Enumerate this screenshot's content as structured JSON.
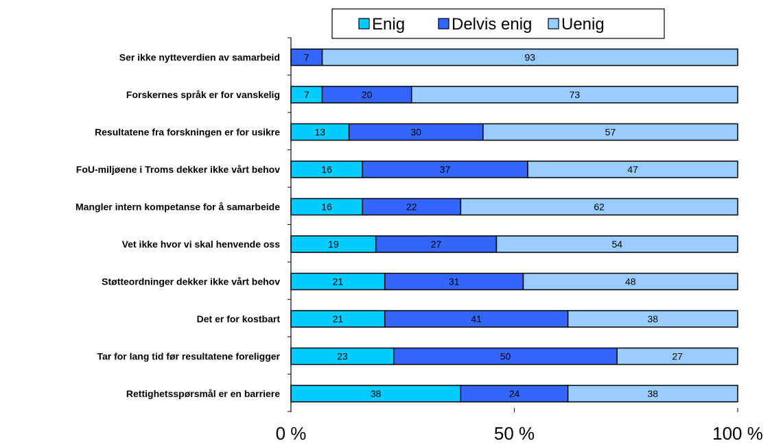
{
  "chart_data": {
    "type": "bar",
    "orientation": "horizontal",
    "stacked": "percent",
    "title": "",
    "xlabel": "",
    "ylabel": "",
    "xlim": [
      0,
      100
    ],
    "x_ticks": [
      "0 %",
      "50 %",
      "100 %"
    ],
    "grid": false,
    "legend_position": "top",
    "categories": [
      "Ser ikke nytteverdien av samarbeid",
      "Forskernes språk er for vanskelig",
      "Resultatene fra forskningen er for usikre",
      "FoU-miljøene i Troms dekker ikke vårt behov",
      "Mangler intern kompetanse for å samarbeide",
      "Vet ikke hvor vi skal henvende oss",
      "Støtteordninger dekker ikke vårt behov",
      "Det er for kostbart",
      "Tar for lang tid før resultatene foreligger",
      "Rettighetsspørsmål er en barriere"
    ],
    "series": [
      {
        "name": "Enig",
        "color": "#00CCFF",
        "values": [
          0,
          7,
          13,
          16,
          16,
          19,
          21,
          21,
          23,
          38
        ]
      },
      {
        "name": "Delvis enig",
        "color": "#3366FF",
        "values": [
          7,
          20,
          30,
          37,
          22,
          27,
          31,
          41,
          50,
          24
        ]
      },
      {
        "name": "Uenig",
        "color": "#99CCFF",
        "values": [
          93,
          73,
          57,
          47,
          62,
          54,
          48,
          38,
          27,
          38
        ]
      }
    ]
  }
}
